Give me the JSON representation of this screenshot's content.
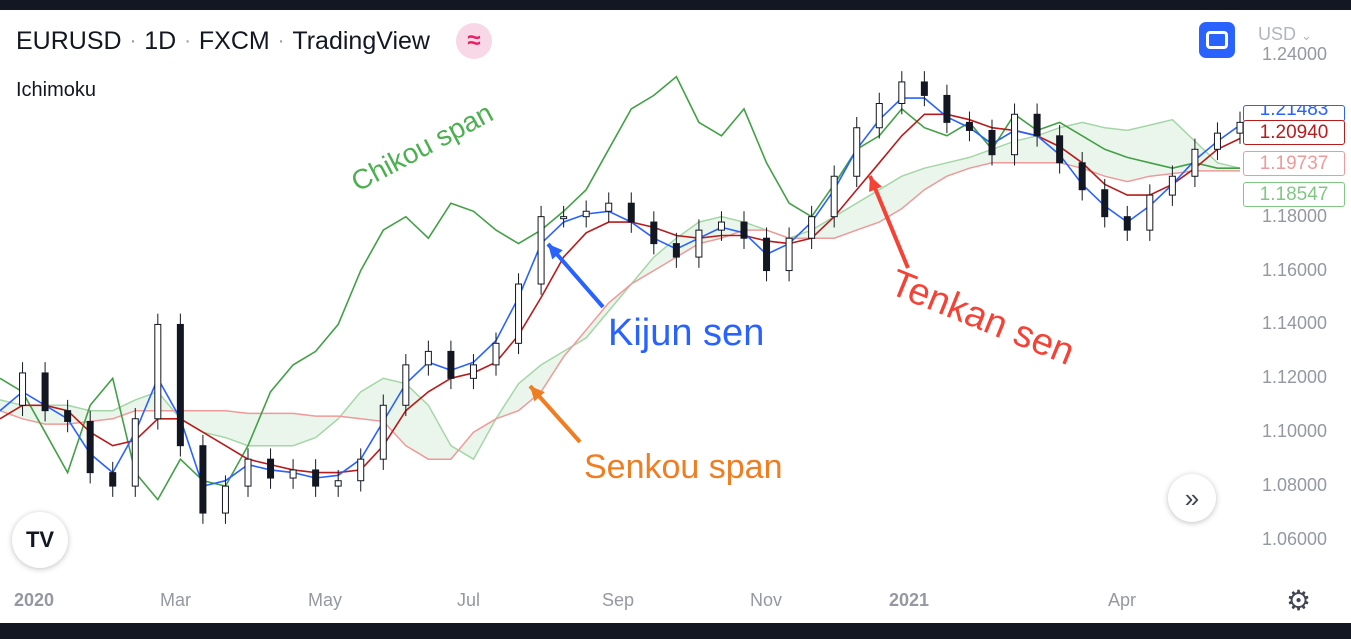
{
  "header": {
    "symbol": "EURUSD",
    "interval": "1D",
    "exchange": "FXCM",
    "source": "TradingView",
    "badge_icon": "≈"
  },
  "indicator_label": "Ichimoku",
  "currency": "USD",
  "price_tags": [
    {
      "value": "1.21483",
      "color": "#2962ff"
    },
    {
      "value": "1.20940",
      "color": "#b71c1c"
    },
    {
      "value": "1.19737",
      "color": "#ef9a9a"
    },
    {
      "value": "1.18547",
      "color": "#81c784"
    }
  ],
  "annotations": {
    "chikou": {
      "text": "Chikou span",
      "color": "#4caf50"
    },
    "kijun": {
      "text": "Kijun sen",
      "color": "#2962ff"
    },
    "tenkan": {
      "text": "Tenkan sen",
      "color": "#f44336"
    },
    "senkou": {
      "text": "Senkou span",
      "color": "#ef7d22"
    }
  },
  "chart_data": {
    "type": "line",
    "ylim": [
      1.04,
      1.24
    ],
    "y_ticks": [
      "1.24000",
      "1.18000",
      "1.16000",
      "1.14000",
      "1.12000",
      "1.10000",
      "1.08000",
      "1.06000"
    ],
    "x_ticks": [
      {
        "label": "2020",
        "bold": true
      },
      {
        "label": "Mar",
        "bold": false
      },
      {
        "label": "May",
        "bold": false
      },
      {
        "label": "Jul",
        "bold": false
      },
      {
        "label": "Sep",
        "bold": false
      },
      {
        "label": "Nov",
        "bold": false
      },
      {
        "label": "2021",
        "bold": true
      },
      {
        "label": "Apr",
        "bold": false
      }
    ],
    "price": [
      1.11,
      1.122,
      1.108,
      1.104,
      1.085,
      1.08,
      1.105,
      1.14,
      1.095,
      1.07,
      1.08,
      1.09,
      1.083,
      1.086,
      1.08,
      1.082,
      1.09,
      1.11,
      1.125,
      1.13,
      1.12,
      1.125,
      1.133,
      1.155,
      1.18,
      1.18,
      1.182,
      1.185,
      1.178,
      1.17,
      1.165,
      1.175,
      1.178,
      1.172,
      1.16,
      1.172,
      1.18,
      1.195,
      1.213,
      1.222,
      1.23,
      1.225,
      1.215,
      1.212,
      1.203,
      1.218,
      1.21,
      1.2,
      1.19,
      1.18,
      1.175,
      1.188,
      1.195,
      1.205,
      1.211,
      1.215
    ],
    "tenkan": [
      1.108,
      1.115,
      1.11,
      1.105,
      1.092,
      1.085,
      1.1,
      1.12,
      1.105,
      1.08,
      1.082,
      1.088,
      1.086,
      1.085,
      1.083,
      1.084,
      1.09,
      1.104,
      1.118,
      1.126,
      1.123,
      1.126,
      1.134,
      1.15,
      1.17,
      1.178,
      1.181,
      1.182,
      1.178,
      1.172,
      1.168,
      1.172,
      1.176,
      1.174,
      1.166,
      1.17,
      1.178,
      1.19,
      1.205,
      1.216,
      1.224,
      1.224,
      1.217,
      1.213,
      1.207,
      1.212,
      1.21,
      1.203,
      1.192,
      1.184,
      1.178,
      1.184,
      1.192,
      1.201,
      1.208,
      1.214
    ],
    "kijun": [
      1.105,
      1.11,
      1.11,
      1.108,
      1.1,
      1.095,
      1.097,
      1.105,
      1.105,
      1.1,
      1.095,
      1.09,
      1.088,
      1.086,
      1.085,
      1.085,
      1.086,
      1.095,
      1.108,
      1.115,
      1.12,
      1.122,
      1.126,
      1.136,
      1.15,
      1.165,
      1.174,
      1.178,
      1.178,
      1.176,
      1.173,
      1.172,
      1.173,
      1.173,
      1.171,
      1.17,
      1.172,
      1.18,
      1.19,
      1.2,
      1.21,
      1.218,
      1.218,
      1.216,
      1.213,
      1.212,
      1.21,
      1.206,
      1.2,
      1.192,
      1.188,
      1.188,
      1.192,
      1.198,
      1.205,
      1.209
    ],
    "chikou": [
      1.12,
      1.115,
      1.1,
      1.085,
      1.11,
      1.12,
      1.085,
      1.075,
      1.09,
      1.082,
      1.08,
      1.095,
      1.115,
      1.125,
      1.13,
      1.14,
      1.16,
      1.175,
      1.18,
      1.172,
      1.185,
      1.182,
      1.175,
      1.17,
      1.175,
      1.182,
      1.19,
      1.205,
      1.22,
      1.225,
      1.232,
      1.215,
      1.21,
      1.22,
      1.2,
      1.185,
      1.18,
      1.192,
      1.205,
      1.21,
      1.22,
      1.213,
      1.21,
      1.215,
      1.205,
      1.218,
      1.212,
      1.215,
      1.21,
      1.205,
      1.202,
      1.2,
      1.198,
      1.2,
      1.198,
      1.198
    ],
    "senkou_a": [
      1.112,
      1.11,
      1.11,
      1.11,
      1.108,
      1.108,
      1.112,
      1.115,
      1.105,
      1.1,
      1.098,
      1.095,
      1.095,
      1.095,
      1.098,
      1.105,
      1.115,
      1.12,
      1.118,
      1.11,
      1.095,
      1.09,
      1.105,
      1.118,
      1.125,
      1.13,
      1.135,
      1.145,
      1.155,
      1.165,
      1.172,
      1.178,
      1.18,
      1.178,
      1.175,
      1.172,
      1.175,
      1.18,
      1.185,
      1.19,
      1.195,
      1.198,
      1.2,
      1.202,
      1.205,
      1.208,
      1.21,
      1.213,
      1.215,
      1.213,
      1.212,
      1.214,
      1.216,
      1.208,
      1.2,
      1.198
    ],
    "senkou_b": [
      1.108,
      1.105,
      1.103,
      1.103,
      1.104,
      1.105,
      1.108,
      1.108,
      1.108,
      1.108,
      1.108,
      1.107,
      1.107,
      1.107,
      1.106,
      1.106,
      1.105,
      1.104,
      1.095,
      1.09,
      1.09,
      1.1,
      1.105,
      1.108,
      1.115,
      1.128,
      1.138,
      1.148,
      1.155,
      1.16,
      1.165,
      1.17,
      1.172,
      1.175,
      1.175,
      1.172,
      1.172,
      1.172,
      1.175,
      1.178,
      1.183,
      1.19,
      1.195,
      1.198,
      1.2,
      1.2,
      1.2,
      1.2,
      1.198,
      1.195,
      1.193,
      1.195,
      1.196,
      1.197,
      1.197,
      1.197
    ]
  }
}
